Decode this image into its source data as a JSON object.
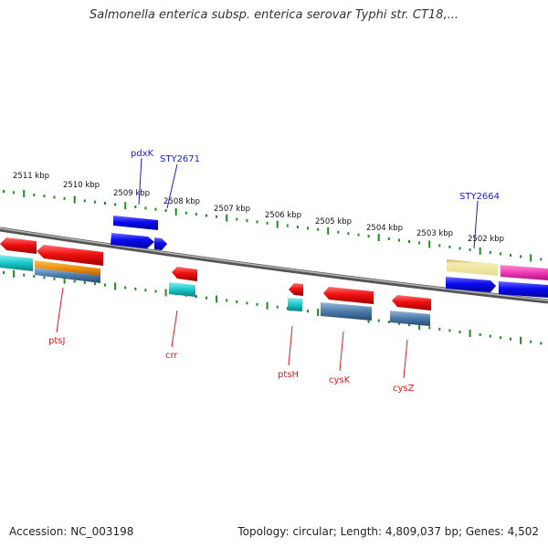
{
  "title": "Salmonella enterica subsp. enterica serovar Typhi str. CT18,...",
  "footer": {
    "accession": "Accession: NC_003198",
    "topology": "Topology: circular; Length: 4,809,037 bp; Genes: 4,502"
  },
  "scale": {
    "top_labels": [
      "2511 kbp",
      "2510 kbp",
      "2509 kbp",
      "2508 kbp",
      "2507 kbp",
      "2506 kbp",
      "2505 kbp",
      "2504 kbp",
      "2503 kbp",
      "2502 kbp"
    ]
  },
  "gene_labels": {
    "forward": [
      "pdxK",
      "STY2671",
      "STY2664"
    ],
    "reverse": [
      "ptsJ",
      "crr",
      "ptsH",
      "cysK",
      "cysZ"
    ]
  },
  "colors": {
    "forward_label": "#1a1ae6",
    "reverse_label": "#e01a1a",
    "tick": "#1e8c1e",
    "backbone": "#777777",
    "gene_blue": "#0a0af0",
    "gene_red": "#f01010",
    "gene_cyan": "#18c8c8",
    "gene_orange": "#f09010",
    "gene_steel": "#4a7aaa",
    "gene_khaki": "#ece096",
    "gene_magenta": "#f03cb4"
  }
}
